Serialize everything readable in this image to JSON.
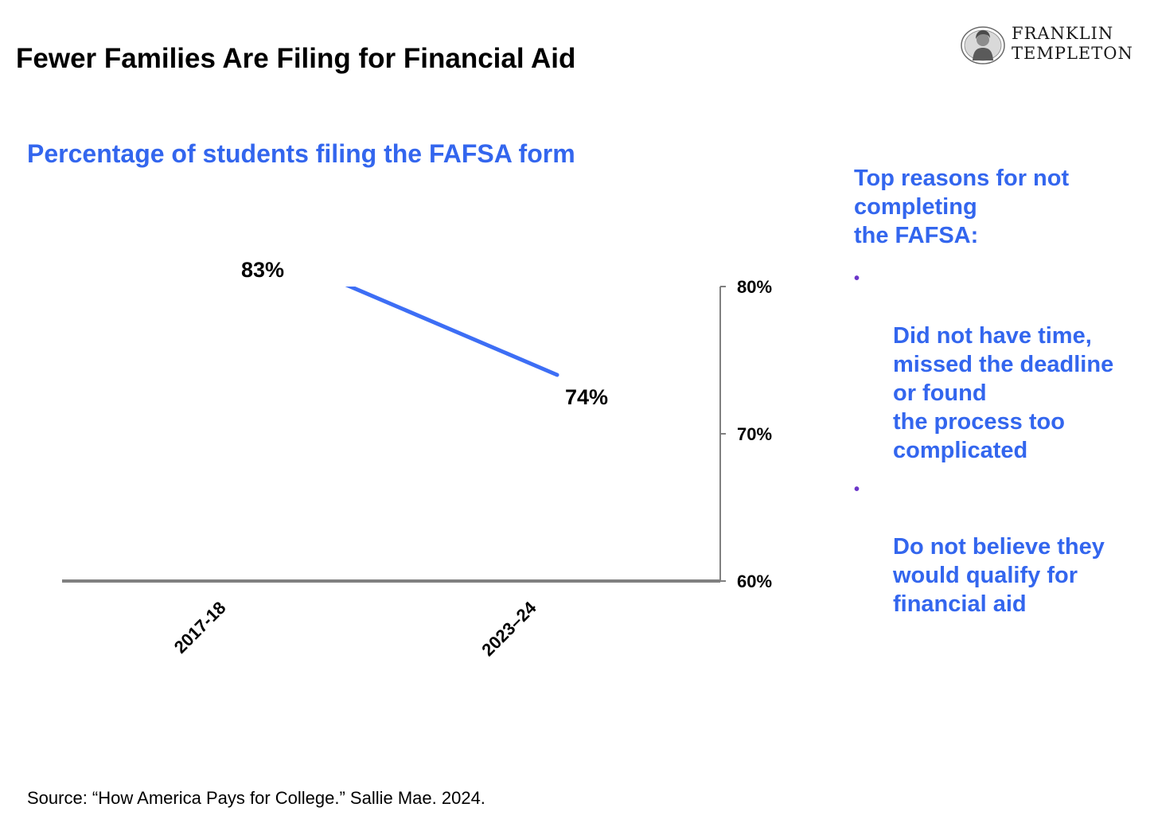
{
  "header": {
    "title": "Fewer Families Are Filing for Financial Aid",
    "logo_line1": "FRANKLIN",
    "logo_line2": "TEMPLETON"
  },
  "chart_data": {
    "type": "line",
    "title": "Percentage of students filing the FAFSA form",
    "categories": [
      "2017-18",
      "2023–24"
    ],
    "series": [
      {
        "values": [
          83,
          74
        ],
        "color": "#3d6ef5"
      }
    ],
    "data_labels": [
      "83%",
      "74%"
    ],
    "yticks": [
      60,
      70,
      80
    ],
    "ytick_labels": [
      "60%",
      "70%",
      "80%"
    ],
    "ylim": [
      60,
      80
    ],
    "y_axis_position": "right",
    "grid": false,
    "xlabel": "",
    "ylabel": ""
  },
  "side_panel": {
    "heading": "Top reasons for not completing\nthe FAFSA:",
    "bullet_color": "#6b36c9",
    "reasons": [
      "Did not have time, missed the deadline or found\nthe process too complicated",
      "Do not believe they would qualify for financial aid"
    ]
  },
  "footer": {
    "source": "Source: “How America Pays for College.” Sallie Mae. 2024."
  },
  "colors": {
    "accent": "#3366ee",
    "line": "#3d6ef5",
    "axis": "#808080"
  }
}
